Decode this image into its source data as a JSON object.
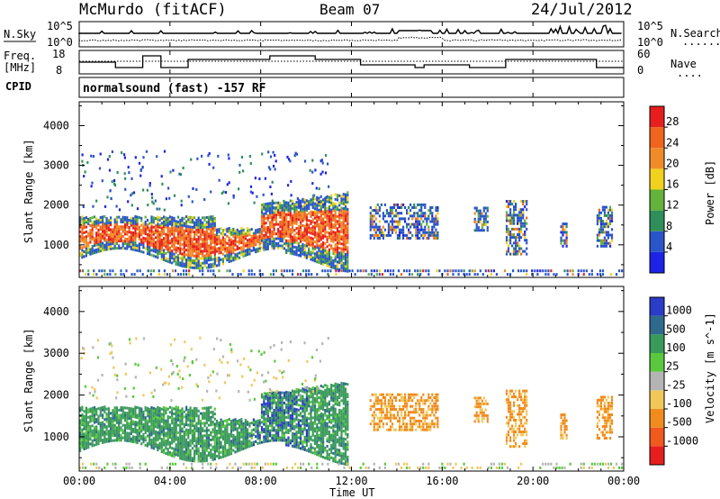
{
  "header": {
    "station": "McMurdo (fitACF)",
    "beam": "Beam 07",
    "date": "24/Jul/2012"
  },
  "noise_panel": {
    "left_label": "N.Sky",
    "right_label": "N.Search",
    "right_legend_line": ".......",
    "tick_top": "10^5",
    "tick_bottom": "10^0"
  },
  "freq_panel": {
    "left_label_line1": "Freq.",
    "left_label_line2": "[MHz]",
    "right_label": "Nave",
    "right_legend_line": "....",
    "left_ticks": [
      "18",
      "8"
    ],
    "right_ticks": [
      "60",
      "0"
    ]
  },
  "cpid": {
    "label": "CPID",
    "value": "normalsound (fast) -157 RF"
  },
  "chart_data": [
    {
      "type": "heatmap",
      "name": "power",
      "ylabel": "Slant Range [km]",
      "yticks": [
        "1000",
        "2000",
        "3000",
        "4000"
      ],
      "xticks": [
        "00:00",
        "04:00",
        "08:00",
        "12:00",
        "16:00",
        "20:00",
        "00:00"
      ],
      "xlim_hours": [
        0,
        24
      ],
      "ylim_km": [
        180,
        4600
      ],
      "colorbar": {
        "label": "Power [dB]",
        "tick_labels": [
          "4",
          "8",
          "12",
          "16",
          "20",
          "24",
          "28"
        ],
        "colors": [
          "#1d23e6",
          "#2a55c8",
          "#2f8f5a",
          "#64b23a",
          "#f0d21e",
          "#f08c28",
          "#f0641e",
          "#e61e1e"
        ]
      }
    },
    {
      "type": "heatmap",
      "name": "velocity",
      "ylabel": "Slant Range [km]",
      "yticks": [
        "1000",
        "2000",
        "3000",
        "4000"
      ],
      "xticks": [
        "00:00",
        "04:00",
        "08:00",
        "12:00",
        "16:00",
        "20:00",
        "00:00"
      ],
      "xlabel": "Time UT",
      "xlim_hours": [
        0,
        24
      ],
      "ylim_km": [
        180,
        4600
      ],
      "colorbar": {
        "label": "Velocity [m s^-1]",
        "tick_labels": [
          "1000",
          "500",
          "100",
          "25",
          "-25",
          "-100",
          "-500",
          "-1000"
        ],
        "colors": [
          "#2a3cc8",
          "#2f6a8c",
          "#3a9a5a",
          "#5ac83c",
          "#b4b4b4",
          "#f0c85a",
          "#f08c1e",
          "#f05a1e",
          "#e61e1e"
        ]
      }
    }
  ]
}
